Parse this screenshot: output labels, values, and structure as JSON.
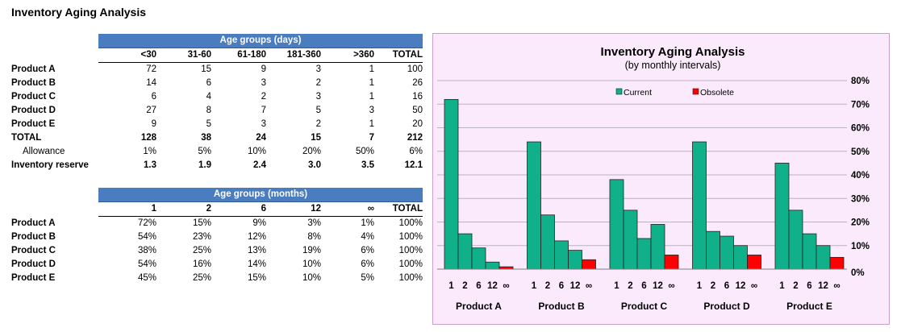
{
  "page_title": "Inventory Aging Analysis",
  "days_table": {
    "band": "Age groups (days)",
    "headers": [
      "<30",
      "31-60",
      "61-180",
      "181-360",
      ">360",
      "TOTAL"
    ],
    "rows": [
      {
        "label": "Product A",
        "cells": [
          "72",
          "15",
          "9",
          "3",
          "1",
          "100"
        ]
      },
      {
        "label": "Product B",
        "cells": [
          "14",
          "6",
          "3",
          "2",
          "1",
          "26"
        ]
      },
      {
        "label": "Product C",
        "cells": [
          "6",
          "4",
          "2",
          "3",
          "1",
          "16"
        ]
      },
      {
        "label": "Product D",
        "cells": [
          "27",
          "8",
          "7",
          "5",
          "3",
          "50"
        ]
      },
      {
        "label": "Product E",
        "cells": [
          "9",
          "5",
          "3",
          "2",
          "1",
          "20"
        ]
      }
    ],
    "total": {
      "label": "TOTAL",
      "cells": [
        "128",
        "38",
        "24",
        "15",
        "7",
        "212"
      ]
    },
    "allowance": {
      "label": "Allowance",
      "cells": [
        "1%",
        "5%",
        "10%",
        "20%",
        "50%",
        "6%"
      ]
    },
    "reserve": {
      "label": "Inventory reserve",
      "cells": [
        "1.3",
        "1.9",
        "2.4",
        "3.0",
        "3.5",
        "12.1"
      ]
    }
  },
  "months_table": {
    "band": "Age groups (months)",
    "headers": [
      "1",
      "2",
      "6",
      "12",
      "∞",
      "TOTAL"
    ],
    "rows": [
      {
        "label": "Product A",
        "cells": [
          "72%",
          "15%",
          "9%",
          "3%",
          "1%",
          "100%"
        ]
      },
      {
        "label": "Product B",
        "cells": [
          "54%",
          "23%",
          "12%",
          "8%",
          "4%",
          "100%"
        ]
      },
      {
        "label": "Product C",
        "cells": [
          "38%",
          "25%",
          "13%",
          "19%",
          "6%",
          "100%"
        ]
      },
      {
        "label": "Product D",
        "cells": [
          "54%",
          "16%",
          "14%",
          "10%",
          "6%",
          "100%"
        ]
      },
      {
        "label": "Product E",
        "cells": [
          "45%",
          "25%",
          "15%",
          "10%",
          "5%",
          "100%"
        ]
      }
    ]
  },
  "chart_data": {
    "type": "bar",
    "title": "Inventory Aging Analysis",
    "subtitle": "(by monthly intervals)",
    "groups": [
      "Product A",
      "Product B",
      "Product C",
      "Product D",
      "Product E"
    ],
    "intervals": [
      "1",
      "2",
      "6",
      "12",
      "∞"
    ],
    "series": [
      {
        "name": "Current",
        "color": "#10b08a",
        "values": [
          [
            72,
            15,
            9,
            3,
            null
          ],
          [
            54,
            23,
            12,
            8,
            null
          ],
          [
            38,
            25,
            13,
            19,
            null
          ],
          [
            54,
            16,
            14,
            10,
            null
          ],
          [
            45,
            25,
            15,
            10,
            null
          ]
        ]
      },
      {
        "name": "Obsolete",
        "color": "#ff0000",
        "values": [
          [
            null,
            null,
            null,
            null,
            1
          ],
          [
            null,
            null,
            null,
            null,
            4
          ],
          [
            null,
            null,
            null,
            null,
            6
          ],
          [
            null,
            null,
            null,
            null,
            6
          ],
          [
            null,
            null,
            null,
            null,
            5
          ]
        ]
      }
    ],
    "y_axis": {
      "min": 0,
      "max": 80,
      "step": 10,
      "unit": "%",
      "position": "right",
      "tick_labels": [
        "0%",
        "10%",
        "20%",
        "30%",
        "40%",
        "50%",
        "60%",
        "70%",
        "80%"
      ]
    },
    "grid": true,
    "legend_position": "top",
    "background": "#fbeafb",
    "border_color": "#c8a0c8",
    "bar_border": "#222222"
  }
}
